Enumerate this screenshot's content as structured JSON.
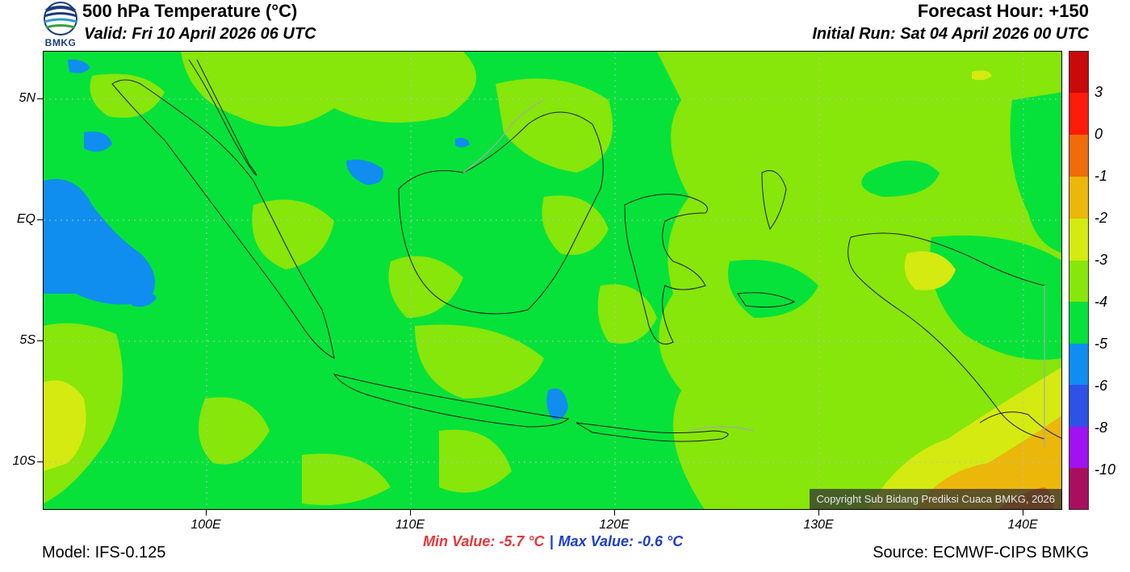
{
  "header": {
    "title": "500 hPa Temperature (°C)",
    "valid": "Valid: Fri 10 April 2026 06 UTC",
    "forecast_hour": "Forecast Hour: +150",
    "initial_run": "Initial Run: Sat 04 April 2026 00 UTC"
  },
  "logo": {
    "text": "BMKG"
  },
  "map": {
    "copyright": "Copyright Sub Bidang Prediksi Cuaca BMKG, 2026",
    "lat_labels": [
      "5N",
      "EQ",
      "5S",
      "10S"
    ],
    "lon_labels": [
      "100E",
      "110E",
      "120E",
      "130E",
      "140E"
    ]
  },
  "colorbar": {
    "labels": [
      "3",
      "0",
      "-1",
      "-2",
      "-3",
      "-4",
      "-5",
      "-6",
      "-8",
      "-10"
    ],
    "colors": [
      "#c80a0a",
      "#ff1a0a",
      "#f06c0a",
      "#ebb70a",
      "#d4ea10",
      "#87e60a",
      "#06e23a",
      "#0f8ef0",
      "#2e52e6",
      "#a012f0",
      "#a8105e"
    ]
  },
  "stats": {
    "min": "Min Value: -5.7 °C",
    "separator": "|",
    "max": "Max Value: -0.6 °C"
  },
  "footer": {
    "model": "Model: IFS-0.125",
    "source": "Source: ECMWF-CIPS BMKG"
  },
  "colors": {
    "green_minus4": "#06e23a",
    "lightgreen_minus3": "#87e60a",
    "yellowgreen_minus2": "#d4ea10",
    "amber_minus1": "#ebb70a",
    "orange_0": "#f06c0a",
    "blue_minus5": "#0f8ef0"
  }
}
